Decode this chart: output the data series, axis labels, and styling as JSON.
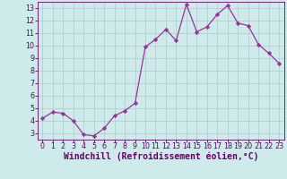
{
  "x": [
    0,
    1,
    2,
    3,
    4,
    5,
    6,
    7,
    8,
    9,
    10,
    11,
    12,
    13,
    14,
    15,
    16,
    17,
    18,
    19,
    20,
    21,
    22,
    23
  ],
  "y": [
    4.2,
    4.7,
    4.6,
    4.0,
    2.9,
    2.8,
    3.4,
    4.4,
    4.8,
    5.4,
    9.9,
    10.5,
    11.3,
    10.4,
    13.3,
    11.1,
    11.5,
    12.5,
    13.2,
    11.8,
    11.6,
    10.1,
    9.4,
    8.6
  ],
  "line_color": "#993399",
  "marker": "D",
  "marker_size": 2.2,
  "bg_color": "#ceeaea",
  "grid_color": "#aacccc",
  "xlabel": "Windchill (Refroidissement éolien,°C)",
  "ylabel": "",
  "xlim": [
    -0.5,
    23.5
  ],
  "ylim": [
    2.5,
    13.5
  ],
  "yticks": [
    3,
    4,
    5,
    6,
    7,
    8,
    9,
    10,
    11,
    12,
    13
  ],
  "xticks": [
    0,
    1,
    2,
    3,
    4,
    5,
    6,
    7,
    8,
    9,
    10,
    11,
    12,
    13,
    14,
    15,
    16,
    17,
    18,
    19,
    20,
    21,
    22,
    23
  ],
  "axis_color": "#660066",
  "tick_labelsize": 5.8,
  "xlabel_fontsize": 7.0,
  "linewidth": 0.9
}
